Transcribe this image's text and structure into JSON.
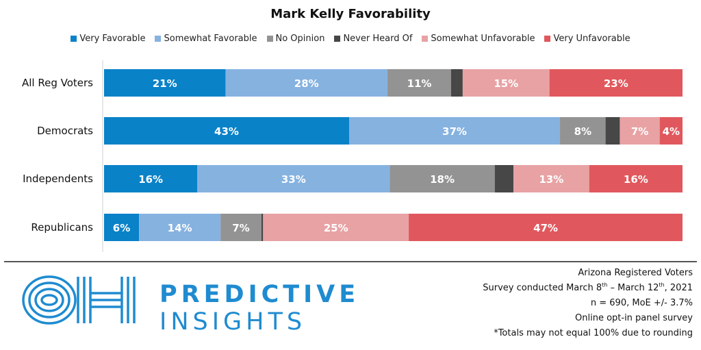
{
  "chart_data": {
    "type": "bar",
    "orientation": "horizontal",
    "stacked": true,
    "title": "Mark Kelly Favorability",
    "legend_position": "top",
    "categories": [
      "All Reg Voters",
      "Democrats",
      "Independents",
      "Republicans"
    ],
    "series": [
      {
        "name": "Very Favorable",
        "color": "#0a82c8",
        "values": [
          21,
          43,
          16,
          6
        ],
        "labels": [
          "21%",
          "43%",
          "16%",
          "6%"
        ]
      },
      {
        "name": "Somewhat Favorable",
        "color": "#86b2e0",
        "values": [
          28,
          37,
          33,
          14
        ],
        "labels": [
          "28%",
          "37%",
          "33%",
          "14%"
        ]
      },
      {
        "name": "No Opinion",
        "color": "#939393",
        "values": [
          11,
          8,
          18,
          7
        ],
        "labels": [
          "11%",
          "8%",
          "18%",
          "7%"
        ]
      },
      {
        "name": "Never Heard Of",
        "color": "#474747",
        "values": [
          2,
          2.5,
          3.2,
          0.3
        ],
        "labels": [
          "",
          "",
          "",
          ""
        ]
      },
      {
        "name": "Somewhat Unfavorable",
        "color": "#e8a2a4",
        "values": [
          15,
          7,
          13,
          25
        ],
        "labels": [
          "15%",
          "7%",
          "13%",
          "25%"
        ]
      },
      {
        "name": "Very Unfavorable",
        "color": "#e0585d",
        "values": [
          23,
          4,
          16,
          47
        ],
        "labels": [
          "23%",
          "4%",
          "16%",
          "47%"
        ]
      }
    ]
  },
  "footer": {
    "brand_line1": "PREDICTIVE",
    "brand_line2": "INSIGHTS",
    "logo_text": "OH",
    "notes": {
      "line1": "Arizona Registered Voters",
      "line2_a": "Survey conducted March 8",
      "line2_sup1": "th",
      "line2_b": " – March 12",
      "line2_sup2": "th",
      "line2_c": ", 2021",
      "line3": "n = 690, MoE +/- 3.7%",
      "line4": "Online opt-in panel survey",
      "line5": "*Totals may not equal 100% due to rounding"
    }
  }
}
